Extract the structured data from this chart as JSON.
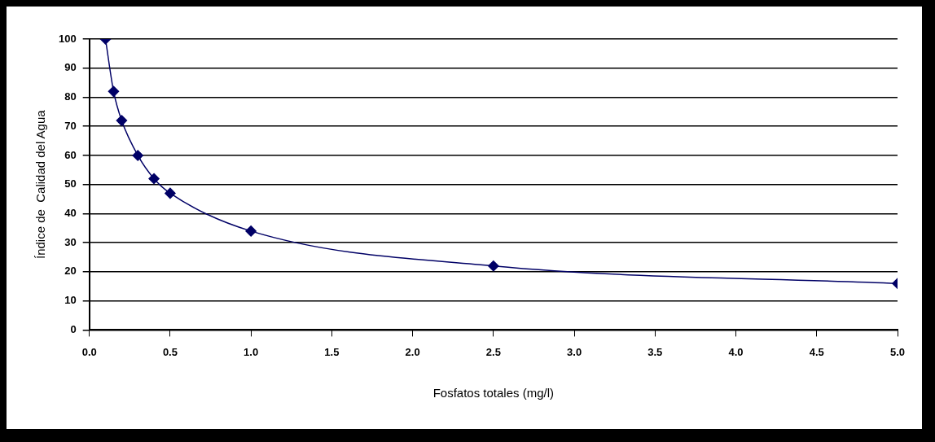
{
  "chart_data": {
    "type": "line",
    "xlabel": "Fosfatos totales (mg/l)",
    "ylabel": "Índice de  Calidad del Agua",
    "x": [
      0.1,
      0.15,
      0.2,
      0.3,
      0.4,
      0.5,
      1.0,
      2.5,
      5.0
    ],
    "series": [
      {
        "color": "#000066",
        "values": [
          100,
          82,
          72,
          60,
          52,
          47,
          34,
          22,
          16
        ]
      }
    ],
    "xlim": [
      0,
      5
    ],
    "xticks": [
      {
        "value": 0,
        "label": "0.0"
      },
      {
        "value": 0.5,
        "label": "0.5"
      },
      {
        "value": 1,
        "label": "1.0"
      },
      {
        "value": 1.5,
        "label": "1.5"
      },
      {
        "value": 2,
        "label": "2.0"
      },
      {
        "value": 2.5,
        "label": "2.5"
      },
      {
        "value": 3,
        "label": "3.0"
      },
      {
        "value": 3.5,
        "label": "3.5"
      },
      {
        "value": 4,
        "label": "4.0"
      },
      {
        "value": 4.5,
        "label": "4.5"
      },
      {
        "value": 5,
        "label": "5.0"
      }
    ],
    "ylim": [
      0,
      100
    ],
    "yticks": [
      0,
      10,
      20,
      30,
      40,
      50,
      60,
      70,
      80,
      90,
      100
    ],
    "grid": "y",
    "legend": false,
    "marker": "diamond",
    "line_style": "solid"
  }
}
